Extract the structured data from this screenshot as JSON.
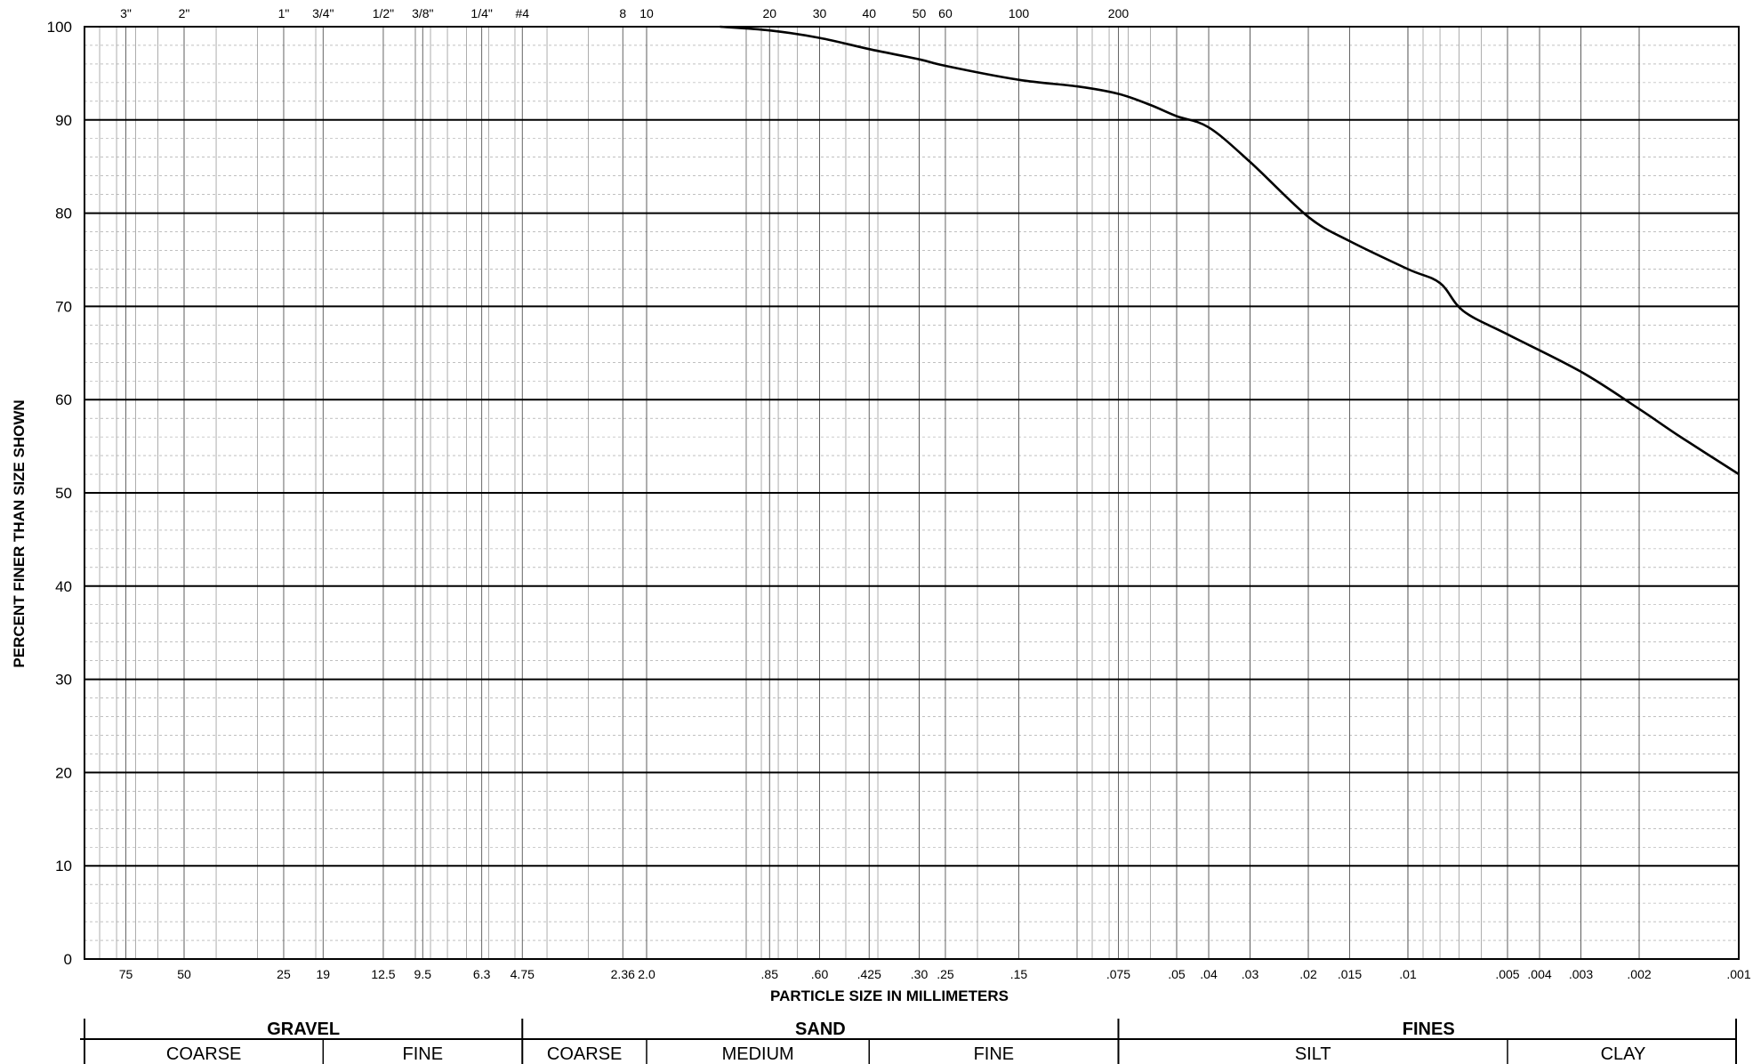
{
  "chart_data": {
    "type": "line",
    "xlabel": "PARTICLE SIZE IN MILLIMETERS",
    "ylabel": "PERCENT FINER THAN SIZE SHOWN",
    "x_scale": "log",
    "x_direction": "descending",
    "xlim": [
      100,
      0.001
    ],
    "ylim": [
      0,
      100
    ],
    "grid": true,
    "ytick_labels": [
      "0",
      "10",
      "20",
      "30",
      "40",
      "50",
      "60",
      "70",
      "80",
      "90",
      "100"
    ],
    "ytick_values": [
      0,
      10,
      20,
      30,
      40,
      50,
      60,
      70,
      80,
      90,
      100
    ],
    "bottom_ticks": [
      {
        "label": "75",
        "value": 75
      },
      {
        "label": "50",
        "value": 50
      },
      {
        "label": "25",
        "value": 25
      },
      {
        "label": "19",
        "value": 19
      },
      {
        "label": "12.5",
        "value": 12.5
      },
      {
        "label": "9.5",
        "value": 9.5
      },
      {
        "label": "6.3",
        "value": 6.3
      },
      {
        "label": "4.75",
        "value": 4.75
      },
      {
        "label": "2.36",
        "value": 2.36
      },
      {
        "label": "2.0",
        "value": 2.0
      },
      {
        "label": ".85",
        "value": 0.85
      },
      {
        "label": ".60",
        "value": 0.6
      },
      {
        "label": ".425",
        "value": 0.425
      },
      {
        "label": ".30",
        "value": 0.3
      },
      {
        "label": ".25",
        "value": 0.25
      },
      {
        "label": ".15",
        "value": 0.15
      },
      {
        "label": ".075",
        "value": 0.075
      },
      {
        "label": ".05",
        "value": 0.05
      },
      {
        "label": ".04",
        "value": 0.04
      },
      {
        "label": ".03",
        "value": 0.03
      },
      {
        "label": ".02",
        "value": 0.02
      },
      {
        "label": ".015",
        "value": 0.015
      },
      {
        "label": ".01",
        "value": 0.01
      },
      {
        "label": ".005",
        "value": 0.005
      },
      {
        "label": ".004",
        "value": 0.004
      },
      {
        "label": ".003",
        "value": 0.003
      },
      {
        "label": ".002",
        "value": 0.002
      },
      {
        "label": ".001",
        "value": 0.001
      }
    ],
    "top_ticks": [
      {
        "label": "3\"",
        "value": 75
      },
      {
        "label": "2\"",
        "value": 50
      },
      {
        "label": "1\"",
        "value": 25
      },
      {
        "label": "3/4\"",
        "value": 19
      },
      {
        "label": "1/2\"",
        "value": 12.5
      },
      {
        "label": "3/8\"",
        "value": 9.5
      },
      {
        "label": "1/4\"",
        "value": 6.3
      },
      {
        "label": "#4",
        "value": 4.75
      },
      {
        "label": "8",
        "value": 2.36
      },
      {
        "label": "10",
        "value": 2.0
      },
      {
        "label": "20",
        "value": 0.85
      },
      {
        "label": "30",
        "value": 0.6
      },
      {
        "label": "40",
        "value": 0.425
      },
      {
        "label": "50",
        "value": 0.3
      },
      {
        "label": "60",
        "value": 0.25
      },
      {
        "label": "100",
        "value": 0.15
      },
      {
        "label": "200",
        "value": 0.075
      }
    ],
    "series": [
      {
        "color": "#000000",
        "points": [
          {
            "x": 1.2,
            "y": 100
          },
          {
            "x": 0.85,
            "y": 99.6
          },
          {
            "x": 0.6,
            "y": 98.8
          },
          {
            "x": 0.425,
            "y": 97.6
          },
          {
            "x": 0.3,
            "y": 96.5
          },
          {
            "x": 0.25,
            "y": 95.8
          },
          {
            "x": 0.15,
            "y": 94.3
          },
          {
            "x": 0.1,
            "y": 93.6
          },
          {
            "x": 0.075,
            "y": 92.8
          },
          {
            "x": 0.06,
            "y": 91.6
          },
          {
            "x": 0.05,
            "y": 90.4
          },
          {
            "x": 0.04,
            "y": 89.2
          },
          {
            "x": 0.03,
            "y": 85.5
          },
          {
            "x": 0.02,
            "y": 79.6
          },
          {
            "x": 0.015,
            "y": 77.0
          },
          {
            "x": 0.01,
            "y": 74.0
          },
          {
            "x": 0.008,
            "y": 72.5
          },
          {
            "x": 0.0068,
            "y": 69.5
          },
          {
            "x": 0.005,
            "y": 67.0
          },
          {
            "x": 0.003,
            "y": 63.0
          },
          {
            "x": 0.002,
            "y": 59.0
          },
          {
            "x": 0.0015,
            "y": 56.0
          },
          {
            "x": 0.001,
            "y": 52.0
          }
        ]
      }
    ],
    "classification": {
      "groups": [
        {
          "label": "GRAVEL",
          "from": 100,
          "to": 4.75
        },
        {
          "label": "SAND",
          "from": 4.75,
          "to": 0.075
        },
        {
          "label": "FINES",
          "from": 0.075,
          "to": 0.001
        }
      ],
      "subgroups": [
        {
          "label": "COARSE",
          "from": 100,
          "to": 19
        },
        {
          "label": "FINE",
          "from": 19,
          "to": 4.75
        },
        {
          "label": "COARSE",
          "from": 4.75,
          "to": 2.0
        },
        {
          "label": "MEDIUM",
          "from": 2.0,
          "to": 0.425
        },
        {
          "label": "FINE",
          "from": 0.425,
          "to": 0.075
        },
        {
          "label": "SILT",
          "from": 0.075,
          "to": 0.005
        },
        {
          "label": "CLAY",
          "from": 0.005,
          "to": 0.001
        }
      ]
    }
  }
}
